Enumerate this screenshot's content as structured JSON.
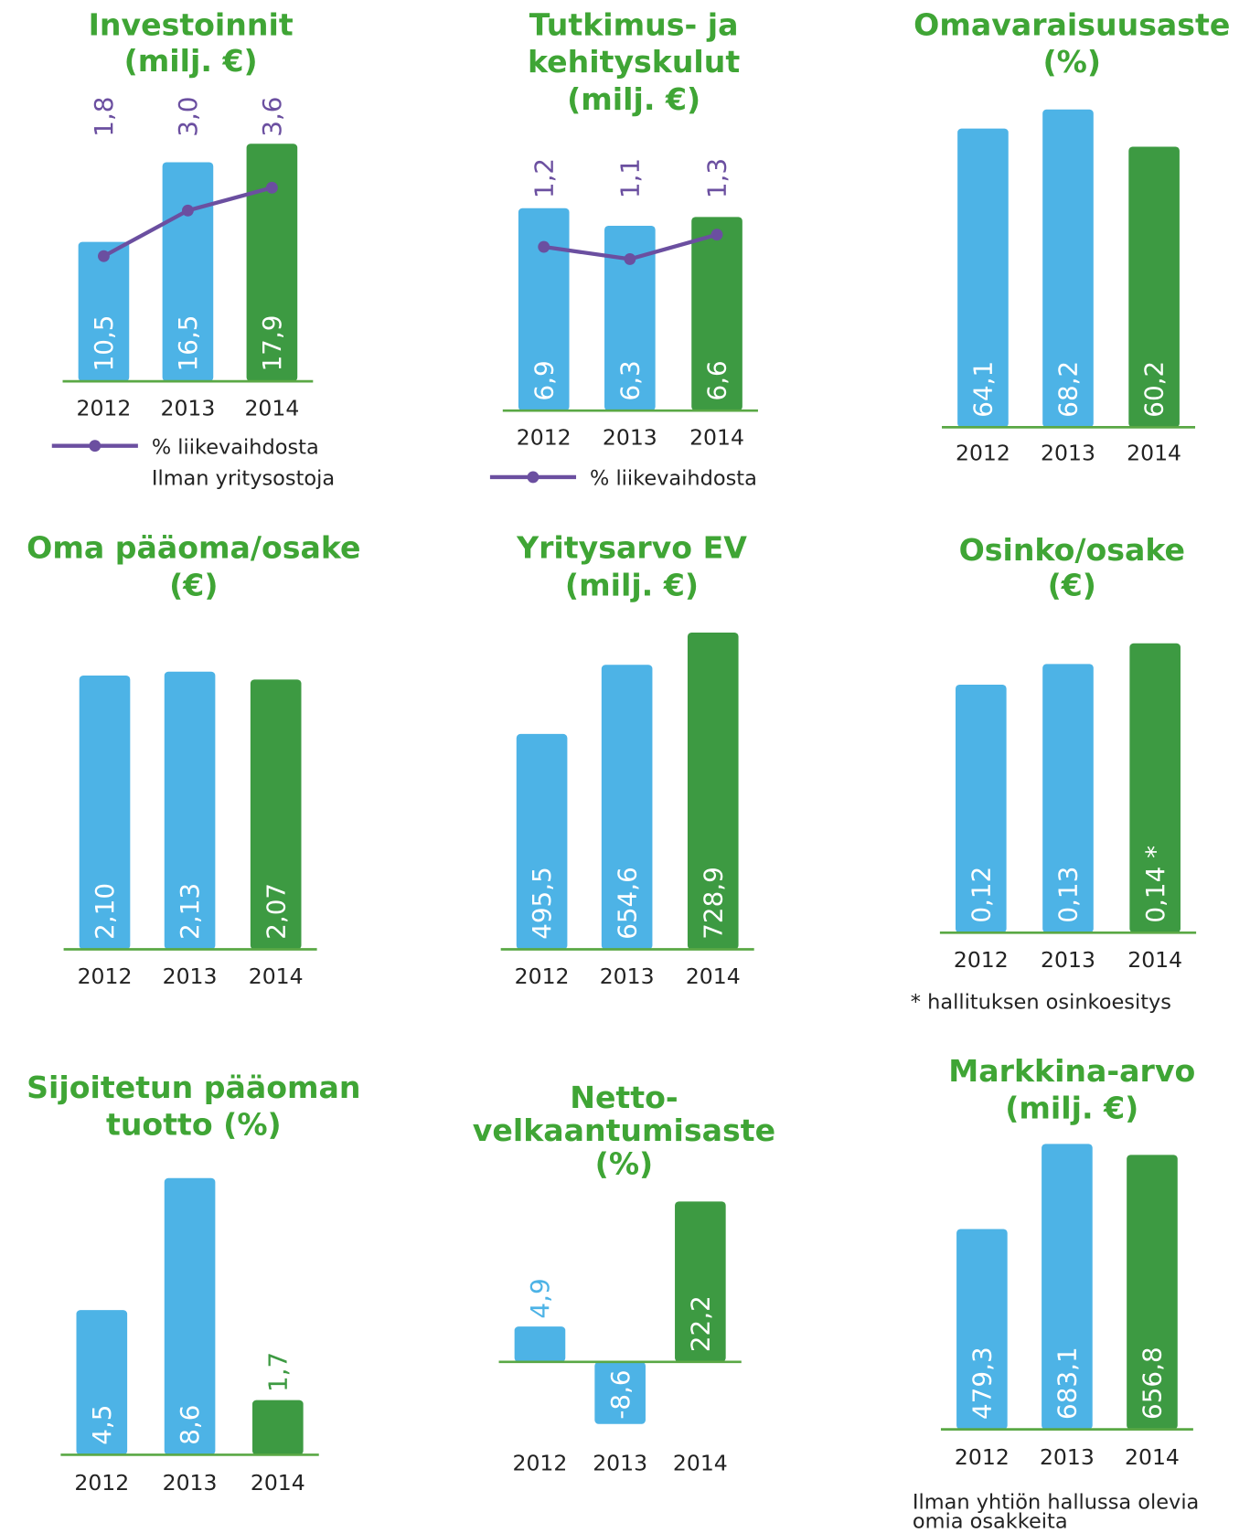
{
  "chart_data": [
    {
      "type": "bar",
      "title": [
        "Investoinnit",
        "(milj. €)"
      ],
      "categories": [
        "2012",
        "2013",
        "2014"
      ],
      "series": [
        {
          "values": [
            10.5,
            16.5,
            17.9
          ],
          "value_labels": [
            "10,5",
            "16,5",
            "17,9"
          ],
          "colors": [
            "#4db3e6",
            "#4db3e6",
            "#3d9a42"
          ]
        },
        {
          "name": "% liikevaihdosta",
          "type": "line",
          "color": "#6b4fa0",
          "values": [
            1.8,
            3.0,
            3.6
          ],
          "value_labels": [
            "1,8",
            "3,0",
            "3,6"
          ]
        }
      ],
      "note": [
        "Ilman yritysostoja"
      ]
    },
    {
      "type": "bar",
      "title": [
        "Tutkimus- ja",
        "kehityskulut",
        "(milj. €)"
      ],
      "categories": [
        "2012",
        "2013",
        "2014"
      ],
      "series": [
        {
          "values": [
            6.9,
            6.3,
            6.6
          ],
          "value_labels": [
            "6,9",
            "6,3",
            "6,6"
          ],
          "colors": [
            "#4db3e6",
            "#4db3e6",
            "#3d9a42"
          ]
        },
        {
          "name": "% liikevaihdosta",
          "type": "line",
          "color": "#6b4fa0",
          "values": [
            1.2,
            1.1,
            1.3
          ],
          "value_labels": [
            "1,2",
            "1,1",
            "1,3"
          ]
        }
      ]
    },
    {
      "type": "bar",
      "title": [
        "Omavaraisuusaste",
        "(%)"
      ],
      "categories": [
        "2012",
        "2013",
        "2014"
      ],
      "series": [
        {
          "values": [
            64.1,
            68.2,
            60.2
          ],
          "value_labels": [
            "64,1",
            "68,2",
            "60,2"
          ],
          "colors": [
            "#4db3e6",
            "#4db3e6",
            "#3d9a42"
          ]
        }
      ]
    },
    {
      "type": "bar",
      "title": [
        "Oma pääoma/osake",
        "(€)"
      ],
      "categories": [
        "2012",
        "2013",
        "2014"
      ],
      "series": [
        {
          "values": [
            2.1,
            2.13,
            2.07
          ],
          "value_labels": [
            "2,10",
            "2,13",
            "2,07"
          ],
          "colors": [
            "#4db3e6",
            "#4db3e6",
            "#3d9a42"
          ]
        }
      ]
    },
    {
      "type": "bar",
      "title": [
        "Yritysarvo EV",
        "(milj. €)"
      ],
      "categories": [
        "2012",
        "2013",
        "2014"
      ],
      "series": [
        {
          "values": [
            495.5,
            654.6,
            728.9
          ],
          "value_labels": [
            "495,5",
            "654,6",
            "728,9"
          ],
          "colors": [
            "#4db3e6",
            "#4db3e6",
            "#3d9a42"
          ]
        }
      ]
    },
    {
      "type": "bar",
      "title": [
        "Osinko/osake",
        "(€)"
      ],
      "categories": [
        "2012",
        "2013",
        "2014"
      ],
      "series": [
        {
          "values": [
            0.12,
            0.13,
            0.14
          ],
          "value_labels": [
            "0,12",
            "0,13",
            "0,14 *"
          ],
          "colors": [
            "#4db3e6",
            "#4db3e6",
            "#3d9a42"
          ]
        }
      ],
      "note": [
        "* hallituksen osinkoesitys"
      ]
    },
    {
      "type": "bar",
      "title": [
        "Sijoitetun pääoman",
        "tuotto (%)"
      ],
      "categories": [
        "2012",
        "2013",
        "2014"
      ],
      "series": [
        {
          "values": [
            4.5,
            8.6,
            1.7
          ],
          "value_labels": [
            "4,5",
            "8,6",
            "1,7"
          ],
          "colors": [
            "#4db3e6",
            "#4db3e6",
            "#3d9a42"
          ]
        }
      ]
    },
    {
      "type": "bar",
      "title": [
        "Netto-",
        "velkaantumisaste",
        "(%)"
      ],
      "categories": [
        "2012",
        "2013",
        "2014"
      ],
      "series": [
        {
          "values": [
            4.9,
            -8.6,
            22.2
          ],
          "value_labels": [
            "4,9",
            "-8,6",
            "22,2"
          ],
          "colors": [
            "#4db3e6",
            "#4db3e6",
            "#3d9a42"
          ]
        }
      ]
    },
    {
      "type": "bar",
      "title": [
        "Markkina-arvo",
        "(milj. €)"
      ],
      "categories": [
        "2012",
        "2013",
        "2014"
      ],
      "series": [
        {
          "values": [
            479.3,
            683.1,
            656.8
          ],
          "value_labels": [
            "479,3",
            "683,1",
            "656,8"
          ],
          "colors": [
            "#4db3e6",
            "#4db3e6",
            "#3d9a42"
          ]
        }
      ],
      "note": [
        "Ilman yhtiön hallussa olevia",
        "omia osakkeita"
      ]
    }
  ]
}
